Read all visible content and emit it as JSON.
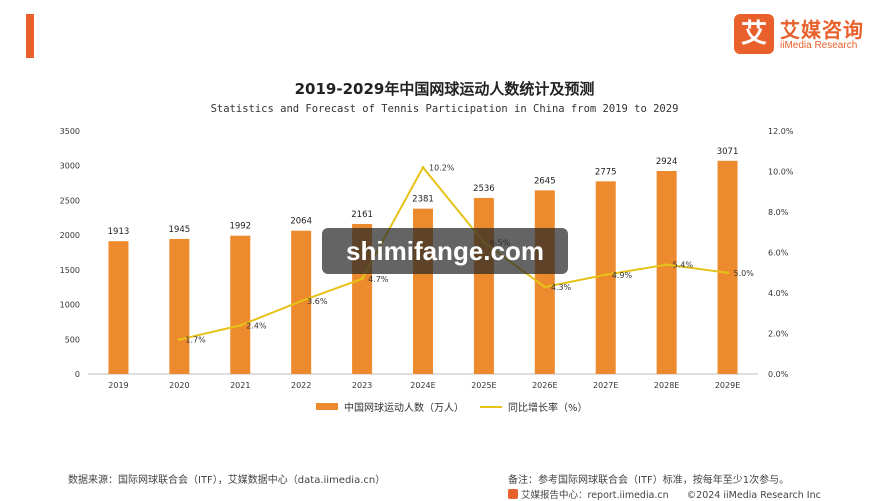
{
  "brand": {
    "logo_mark": "艾",
    "logo_cn": "艾媒咨询",
    "logo_en": "iiMedia Research",
    "accent_color": "#e8602c"
  },
  "chart_data": {
    "type": "bar",
    "title": "2019-2029年中国网球运动人数统计及预测",
    "subtitle": "Statistics and Forecast of Tennis Participation in China from 2019 to 2029",
    "categories": [
      "2019",
      "2020",
      "2021",
      "2022",
      "2023",
      "2024E",
      "2025E",
      "2026E",
      "2027E",
      "2028E",
      "2029E"
    ],
    "series": [
      {
        "name": "中国网球运动人数（万人）",
        "type": "bar",
        "axis": "left",
        "color": "#ee8a2e",
        "values": [
          1913,
          1945,
          1992,
          2064,
          2161,
          2381,
          2536,
          2645,
          2775,
          2924,
          3071
        ],
        "labels": [
          "1913",
          "1945",
          "1992",
          "2064",
          "2161",
          "2381",
          "2536",
          "2645",
          "2775",
          "2924",
          "3071"
        ]
      },
      {
        "name": "同比增长率（%）",
        "type": "line",
        "axis": "right",
        "color": "#e6c219",
        "values": [
          null,
          1.7,
          2.4,
          3.6,
          4.7,
          10.2,
          6.5,
          4.3,
          4.9,
          5.4,
          5.0
        ],
        "labels": [
          "",
          "1.7%",
          "2.4%",
          "3.6%",
          "4.7%",
          "10.2%",
          "6.5%",
          "4.3%",
          "4.9%",
          "5.4%",
          "5.0%"
        ]
      }
    ],
    "y_left": {
      "min": 0,
      "max": 3500,
      "ticks": [
        "0",
        "500",
        "1000",
        "1500",
        "2000",
        "2500",
        "3000",
        "3500"
      ]
    },
    "y_right": {
      "min": 0,
      "max": 12,
      "ticks": [
        "0.0%",
        "2.0%",
        "4.0%",
        "6.0%",
        "8.0%",
        "10.0%",
        "12.0%"
      ]
    },
    "grid": false,
    "legend_position": "bottom-center"
  },
  "legend": {
    "bar_label": "中国网球运动人数（万人）",
    "line_label": "同比增长率（%）"
  },
  "footer": {
    "source": "数据来源：国际网球联合会（ITF），艾媒数据中心（data.iimedia.cn）",
    "note": "备注：参考国际网球联合会（ITF）标准，按每年至少1次参与。",
    "site": "艾媒报告中心：report.iimedia.cn",
    "copyright": "©2024  iiMedia Research  Inc"
  },
  "watermark": "shimifange.com"
}
